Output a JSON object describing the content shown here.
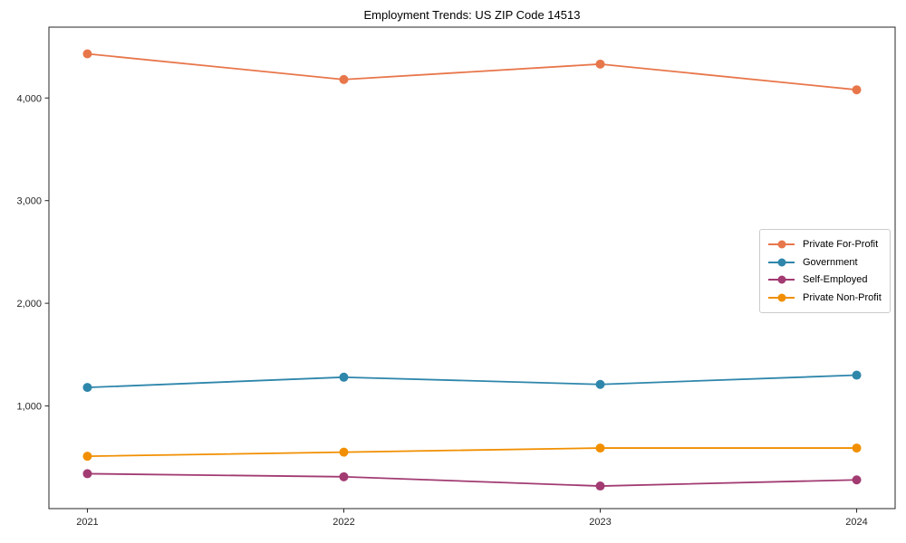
{
  "chart_data": {
    "type": "line",
    "title": "Employment Trends: US ZIP Code 14513",
    "x": [
      2021,
      2022,
      2023,
      2024
    ],
    "x_labels": [
      "2021",
      "2022",
      "2023",
      "2024"
    ],
    "series": [
      {
        "name": "Private For-Profit",
        "color": "#E8764B",
        "values": [
          4430,
          4180,
          4330,
          4080
        ]
      },
      {
        "name": "Government",
        "color": "#2E86AB",
        "values": [
          1180,
          1280,
          1210,
          1300
        ]
      },
      {
        "name": "Self-Employed",
        "color": "#A23B72",
        "values": [
          340,
          310,
          220,
          280
        ]
      },
      {
        "name": "Private Non-Profit",
        "color": "#F18F01",
        "values": [
          510,
          550,
          590,
          590
        ]
      }
    ],
    "xlabel": "",
    "ylabel": "",
    "xlim": [
      2020.85,
      2024.15
    ],
    "ylim": [
      0,
      4690
    ],
    "yticks": [
      1000,
      2000,
      3000,
      4000
    ],
    "ytick_labels": [
      "1,000",
      "2,000",
      "3,000",
      "4,000"
    ],
    "grid": false,
    "legend_position": "center-right",
    "marker": "circle",
    "background_color": "#ffffff",
    "axis_color": "#262626"
  }
}
